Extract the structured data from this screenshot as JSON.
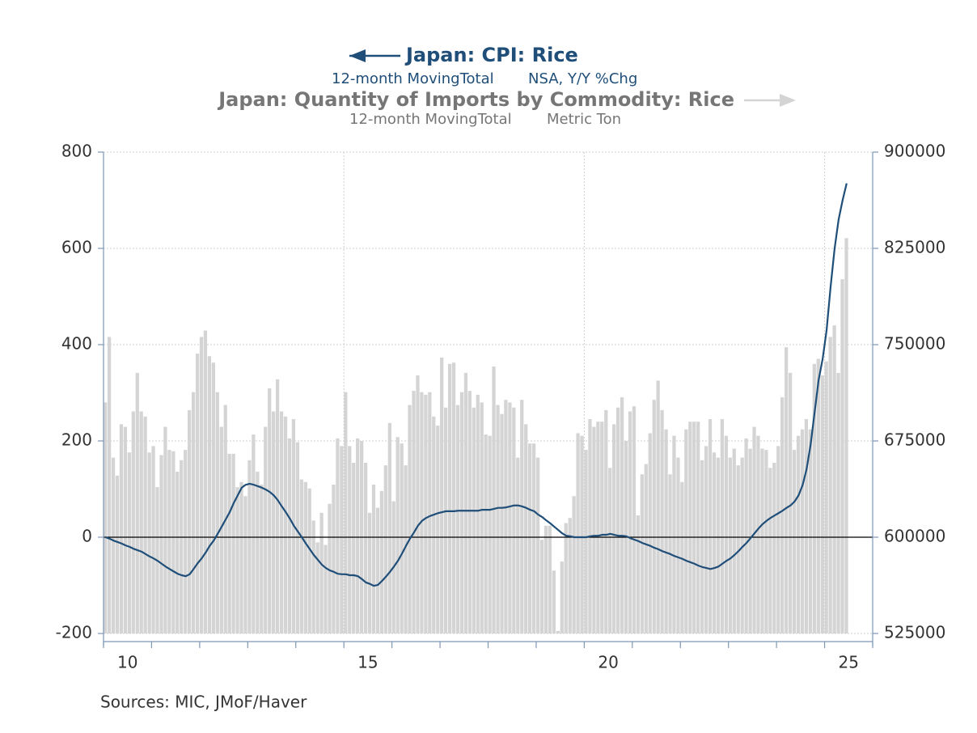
{
  "chart_data": {
    "type": "combo",
    "legend": [
      {
        "title": "Japan: CPI: Rice",
        "notes": [
          "12-month MovingTotal",
          "NSA, Y/Y %Chg"
        ]
      },
      {
        "title": "Japan: Quantity of Imports by Commodity: Rice",
        "notes": [
          "12-month MovingTotal",
          "Metric Ton"
        ]
      }
    ],
    "source": "Sources:  MIC, JMoF/Haver",
    "x": [
      2010.0,
      2010.083,
      2010.167,
      2010.25,
      2010.333,
      2010.417,
      2010.5,
      2010.583,
      2010.667,
      2010.75,
      2010.833,
      2010.917,
      2011.0,
      2011.083,
      2011.167,
      2011.25,
      2011.333,
      2011.417,
      2011.5,
      2011.583,
      2011.667,
      2011.75,
      2011.833,
      2011.917,
      2012.0,
      2012.083,
      2012.167,
      2012.25,
      2012.333,
      2012.417,
      2012.5,
      2012.583,
      2012.667,
      2012.75,
      2012.833,
      2012.917,
      2013.0,
      2013.083,
      2013.167,
      2013.25,
      2013.333,
      2013.417,
      2013.5,
      2013.583,
      2013.667,
      2013.75,
      2013.833,
      2013.917,
      2014.0,
      2014.083,
      2014.167,
      2014.25,
      2014.333,
      2014.417,
      2014.5,
      2014.583,
      2014.667,
      2014.75,
      2014.833,
      2014.917,
      2015.0,
      2015.083,
      2015.167,
      2015.25,
      2015.333,
      2015.417,
      2015.5,
      2015.583,
      2015.667,
      2015.75,
      2015.833,
      2015.917,
      2016.0,
      2016.083,
      2016.167,
      2016.25,
      2016.333,
      2016.417,
      2016.5,
      2016.583,
      2016.667,
      2016.75,
      2016.833,
      2016.917,
      2017.0,
      2017.083,
      2017.167,
      2017.25,
      2017.333,
      2017.417,
      2017.5,
      2017.583,
      2017.667,
      2017.75,
      2017.833,
      2017.917,
      2018.0,
      2018.083,
      2018.167,
      2018.25,
      2018.333,
      2018.417,
      2018.5,
      2018.583,
      2018.667,
      2018.75,
      2018.833,
      2018.917,
      2019.0,
      2019.083,
      2019.167,
      2019.25,
      2019.333,
      2019.417,
      2019.5,
      2019.583,
      2019.667,
      2019.75,
      2019.833,
      2019.917,
      2020.0,
      2020.083,
      2020.167,
      2020.25,
      2020.333,
      2020.417,
      2020.5,
      2020.583,
      2020.667,
      2020.75,
      2020.833,
      2020.917,
      2021.0,
      2021.083,
      2021.167,
      2021.25,
      2021.333,
      2021.417,
      2021.5,
      2021.583,
      2021.667,
      2021.75,
      2021.833,
      2021.917,
      2022.0,
      2022.083,
      2022.167,
      2022.25,
      2022.333,
      2022.417,
      2022.5,
      2022.583,
      2022.667,
      2022.75,
      2022.833,
      2022.917,
      2023.0,
      2023.083,
      2023.167,
      2023.25,
      2023.333,
      2023.417,
      2023.5,
      2023.583,
      2023.667,
      2023.75,
      2023.833,
      2023.917,
      2024.0,
      2024.083,
      2024.167,
      2024.25,
      2024.333,
      2024.417,
      2024.5,
      2024.583,
      2024.667,
      2024.75,
      2024.833,
      2024.917,
      2025.0,
      2025.083,
      2025.167,
      2025.25,
      2025.333,
      2025.417
    ],
    "series": [
      {
        "name": "Japan: Quantity of Imports by Commodity: Rice",
        "type": "bar",
        "axis": "y2",
        "color": "#d4d4d4",
        "values": [
          705000,
          756000,
          662000,
          648000,
          688000,
          686000,
          666000,
          698000,
          728000,
          698000,
          694000,
          666000,
          671000,
          639000,
          664000,
          686000,
          668000,
          667000,
          651000,
          660000,
          668000,
          699000,
          713000,
          743000,
          756000,
          761000,
          741000,
          736000,
          713000,
          686000,
          703000,
          665000,
          665000,
          639000,
          643000,
          632000,
          660000,
          680000,
          651000,
          641000,
          686000,
          716000,
          698000,
          723000,
          698000,
          694000,
          677000,
          692000,
          674000,
          645000,
          643000,
          638000,
          613000,
          596000,
          619000,
          594000,
          626000,
          641000,
          677000,
          671000,
          713000,
          671000,
          658000,
          677000,
          675000,
          658000,
          619000,
          641000,
          623000,
          636000,
          656000,
          689000,
          628000,
          678000,
          673000,
          656000,
          703000,
          714000,
          726000,
          713000,
          711000,
          713000,
          694000,
          687000,
          740000,
          701000,
          735000,
          736000,
          703000,
          713000,
          728000,
          714000,
          701000,
          711000,
          705000,
          680000,
          679000,
          733000,
          703000,
          696000,
          707000,
          705000,
          701000,
          662000,
          707000,
          688000,
          673000,
          673000,
          662000,
          598000,
          609000,
          609000,
          574000,
          527000,
          581000,
          611000,
          615000,
          632000,
          681000,
          679000,
          668000,
          692000,
          686000,
          690000,
          690000,
          699000,
          654000,
          688000,
          701000,
          709000,
          675000,
          698000,
          702000,
          617000,
          649000,
          657000,
          681000,
          707000,
          722000,
          699000,
          684000,
          649000,
          679000,
          662000,
          643000,
          684000,
          690000,
          690000,
          690000,
          660000,
          671000,
          692000,
          666000,
          662000,
          692000,
          679000,
          662000,
          669000,
          656000,
          662000,
          677000,
          669000,
          686000,
          679000,
          669000,
          668000,
          654000,
          658000,
          671000,
          709000,
          748000,
          728000,
          668000,
          679000,
          684000,
          692000,
          684000,
          735000,
          739000,
          726000,
          737000,
          756000,
          765000,
          728000,
          801000,
          833000
        ]
      },
      {
        "name": "Japan: CPI: Rice",
        "type": "line",
        "axis": "y",
        "color": "#1f4e79",
        "values": [
          0,
          -3,
          -7,
          -10,
          -13,
          -17,
          -20,
          -24,
          -27,
          -30,
          -35,
          -40,
          -44,
          -49,
          -55,
          -61,
          -66,
          -71,
          -76,
          -79,
          -81,
          -77,
          -66,
          -54,
          -44,
          -32,
          -18,
          -7,
          7,
          22,
          37,
          52,
          71,
          87,
          103,
          109,
          111,
          109,
          106,
          103,
          99,
          94,
          87,
          77,
          64,
          52,
          39,
          24,
          12,
          0,
          -13,
          -25,
          -37,
          -47,
          -57,
          -64,
          -69,
          -72,
          -76,
          -77,
          -77,
          -79,
          -79,
          -81,
          -87,
          -94,
          -97,
          -101,
          -99,
          -91,
          -82,
          -72,
          -61,
          -49,
          -34,
          -18,
          -3,
          10,
          24,
          34,
          40,
          44,
          47,
          50,
          52,
          54,
          54,
          54,
          55,
          55,
          55,
          55,
          55,
          55,
          57,
          57,
          57,
          59,
          61,
          61,
          62,
          64,
          66,
          66,
          64,
          61,
          57,
          54,
          47,
          42,
          35,
          29,
          22,
          15,
          8,
          3,
          2,
          0,
          0,
          0,
          0,
          2,
          3,
          3,
          5,
          5,
          7,
          5,
          3,
          3,
          2,
          -2,
          -5,
          -8,
          -12,
          -15,
          -18,
          -22,
          -25,
          -29,
          -32,
          -35,
          -39,
          -42,
          -45,
          -49,
          -52,
          -55,
          -59,
          -62,
          -64,
          -66,
          -64,
          -61,
          -55,
          -49,
          -44,
          -37,
          -29,
          -20,
          -12,
          -2,
          8,
          18,
          27,
          34,
          40,
          45,
          50,
          55,
          61,
          66,
          74,
          87,
          108,
          141,
          192,
          259,
          326,
          370,
          430,
          520,
          600,
          660,
          700,
          735
        ]
      }
    ],
    "xlim": [
      2010,
      2026
    ],
    "xticks": [
      {
        "value": 2010.5,
        "label": "10"
      },
      {
        "value": 2015.5,
        "label": "15"
      },
      {
        "value": 2020.5,
        "label": "20"
      },
      {
        "value": 2025.5,
        "label": "25"
      }
    ],
    "xgrid": [
      2015,
      2020,
      2025
    ],
    "ylim": [
      -200,
      800
    ],
    "yticks": [
      -200,
      0,
      200,
      400,
      600,
      800
    ],
    "y2lim": [
      525000,
      900000
    ],
    "y2ticks": [
      525000,
      600000,
      675000,
      750000,
      825000,
      900000
    ],
    "grid": true,
    "zero_line": 0
  }
}
